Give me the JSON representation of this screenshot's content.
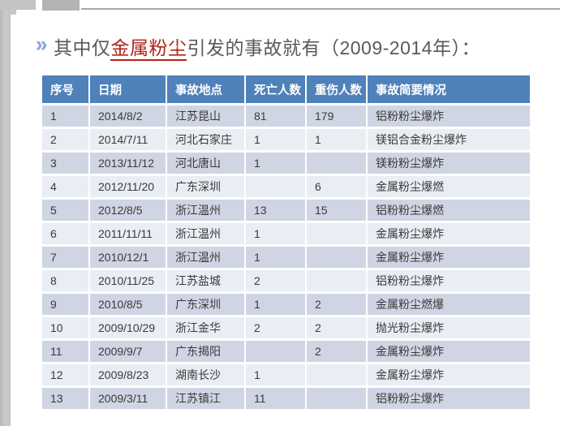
{
  "slide_title": {
    "bullet_glyph": "»",
    "prefix": "其中仅",
    "highlight": "金属粉尘",
    "suffix": "引发的事故就有（2009-2014年）："
  },
  "table": {
    "headers": [
      "序号",
      "日期",
      "事故地点",
      "死亡人数",
      "重伤人数",
      "事故简要情况"
    ],
    "rows": [
      [
        "1",
        "2014/8/2",
        "江苏昆山",
        "81",
        "179",
        "铝粉粉尘爆炸"
      ],
      [
        "2",
        "2014/7/11",
        "河北石家庄",
        "1",
        "1",
        "镁铝合金粉尘爆炸"
      ],
      [
        "3",
        "2013/11/12",
        "河北唐山",
        "1",
        "",
        "镁粉粉尘爆炸"
      ],
      [
        "4",
        "2012/11/20",
        "广东深圳",
        "",
        "6",
        "金属粉尘爆燃"
      ],
      [
        "5",
        "2012/8/5",
        "浙江温州",
        "13",
        "15",
        "铝粉粉尘爆燃"
      ],
      [
        "6",
        "2011/11/11",
        "浙江温州",
        "1",
        "",
        "金属粉尘爆炸"
      ],
      [
        "7",
        "2010/12/1",
        "浙江温州",
        "1",
        "",
        "金属粉尘爆炸"
      ],
      [
        "8",
        "2010/11/25",
        "江苏盐城",
        "2",
        "",
        "铝粉粉尘爆炸"
      ],
      [
        "9",
        "2010/8/5",
        "广东深圳",
        "1",
        "2",
        "金属粉尘燃爆"
      ],
      [
        "10",
        "2009/10/29",
        "浙江金华",
        "2",
        "2",
        "抛光粉尘爆炸"
      ],
      [
        "11",
        "2009/9/7",
        "广东揭阳",
        "",
        "2",
        "金属粉尘爆炸"
      ],
      [
        "12",
        "2009/8/23",
        "湖南长沙",
        "1",
        "",
        "金属粉尘爆炸"
      ],
      [
        "13",
        "2009/3/11",
        "江苏镇江",
        "11",
        "",
        "铝粉粉尘爆炸"
      ]
    ]
  },
  "colors": {
    "table_header_bg": "#4f81ba",
    "banded_row_bg": "#cfd5e3",
    "light_row_bg": "#e9edf4",
    "title_text": "#595959",
    "highlight_red": "#b02318",
    "bullet_blue": "#8ca6d5",
    "frame_gray": "#c3c3c3"
  }
}
